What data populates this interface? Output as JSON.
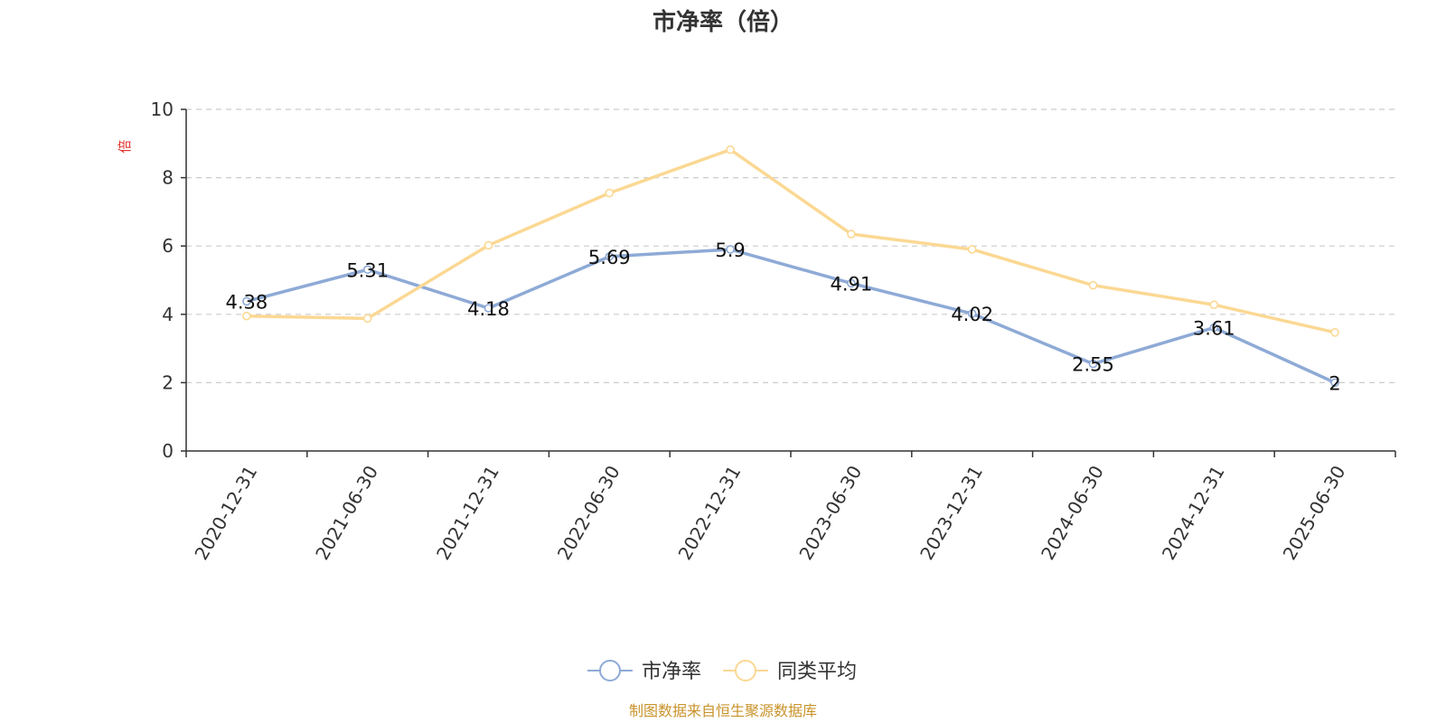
{
  "chart_data": {
    "type": "line",
    "title": "市净率（倍）",
    "ylabel": "倍",
    "ylim": [
      0,
      10
    ],
    "yticks": [
      0,
      2,
      4,
      6,
      8,
      10
    ],
    "grid": true,
    "legend_position": "bottom-center",
    "categories": [
      "2020-12-31",
      "2021-06-30",
      "2021-12-31",
      "2022-06-30",
      "2022-12-31",
      "2023-06-30",
      "2023-12-31",
      "2024-06-30",
      "2024-12-31",
      "2025-06-30"
    ],
    "series": [
      {
        "name": "市净率",
        "color": "#8eaad6",
        "show_labels": true,
        "labels": [
          "4.38",
          "5.31",
          "4.18",
          "5.69",
          "5.9",
          "4.91",
          "4.02",
          "2.55",
          "3.61",
          "2"
        ],
        "values": [
          4.38,
          5.31,
          4.18,
          5.69,
          5.9,
          4.91,
          4.02,
          2.55,
          3.61,
          2
        ]
      },
      {
        "name": "同类平均",
        "color": "#fbd893",
        "show_labels": false,
        "values": [
          3.95,
          3.88,
          6.02,
          7.55,
          8.82,
          6.35,
          5.9,
          4.85,
          4.28,
          3.47
        ]
      }
    ],
    "source": "制图数据来自恒生聚源数据库",
    "colors": {
      "axis": "#333333",
      "grid": "#cccccc",
      "ylabel": "#e0302a",
      "source": "#c9932b"
    }
  }
}
